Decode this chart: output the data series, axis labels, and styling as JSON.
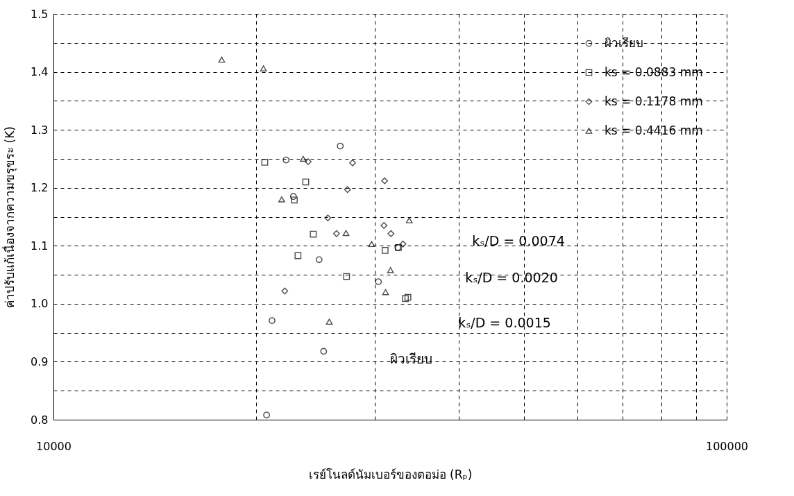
{
  "chart_data": {
    "type": "scatter",
    "xlabel": "เรย์โนลด์นัมเบอร์ของตอม่อ (Rₚ)",
    "ylabel": "ค่าปรับแก้เนื่องจากความขรุขระ (K)",
    "log": "x",
    "xlim": [
      10000,
      100000
    ],
    "xticks": [
      10000,
      {
        "value": 20000,
        "label": null
      },
      {
        "value": 30000,
        "label": null
      },
      {
        "value": 40000,
        "label": null
      },
      {
        "value": 50000,
        "label": null
      },
      {
        "value": 60000,
        "label": null
      },
      {
        "value": 70000,
        "label": null
      },
      {
        "value": 80000,
        "label": null
      },
      {
        "value": 90000,
        "label": null
      },
      100000
    ],
    "ylim": [
      0.8,
      1.5
    ],
    "yticks": [
      0.8,
      {
        "value": 0.85,
        "label": null
      },
      0.9,
      {
        "value": 0.95,
        "label": null
      },
      {
        "value": 1.0,
        "label": "1.0"
      },
      {
        "value": 1.05,
        "label": null
      },
      1.1,
      {
        "value": 1.15,
        "label": null
      },
      1.2,
      {
        "value": 1.25,
        "label": null
      },
      1.3,
      {
        "value": 1.35,
        "label": null
      },
      1.4,
      {
        "value": 1.45,
        "label": null
      },
      1.5
    ],
    "grid": true,
    "legend": "top right",
    "series": [
      {
        "name": "ผิวเรียบ",
        "color": "#000000",
        "marker": "circle",
        "x": [
          26670,
          22160,
          22720,
          24810,
          32480,
          30390,
          21120,
          25200,
          20730
        ],
        "values": [
          1.272,
          1.248,
          1.185,
          1.076,
          1.097,
          1.038,
          0.971,
          0.918,
          0.808
        ]
      },
      {
        "name": "ks = 0.0883 mm",
        "color": "#000000",
        "marker": "square",
        "x": [
          20600,
          23700,
          22790,
          24320,
          23080,
          27250,
          31090,
          32530,
          33320,
          33610
        ],
        "values": [
          1.244,
          1.21,
          1.179,
          1.12,
          1.083,
          1.047,
          1.092,
          1.097,
          1.009,
          1.011
        ]
      },
      {
        "name": "ks = 0.1178 mm",
        "color": "#000000",
        "marker": "diamond",
        "x": [
          23900,
          27820,
          31040,
          27340,
          25560,
          30970,
          26330,
          31720,
          33050,
          22060
        ],
        "values": [
          1.245,
          1.243,
          1.212,
          1.197,
          1.148,
          1.135,
          1.121,
          1.121,
          1.103,
          1.022
        ]
      },
      {
        "name": "ks = 0.4416 mm",
        "color": "#000000",
        "marker": "triangle",
        "x": [
          17780,
          20510,
          23500,
          21830,
          27200,
          33770,
          29690,
          31670,
          31140,
          25690
        ],
        "values": [
          1.421,
          1.406,
          1.25,
          1.18,
          1.122,
          1.144,
          1.103,
          1.058,
          1.02,
          0.969
        ]
      }
    ],
    "annotations": [
      "kₛ/D = 0.0074",
      "kₛ/D = 0.0020",
      "kₛ/D = 0.0015",
      "ผิวเรียบ"
    ]
  }
}
